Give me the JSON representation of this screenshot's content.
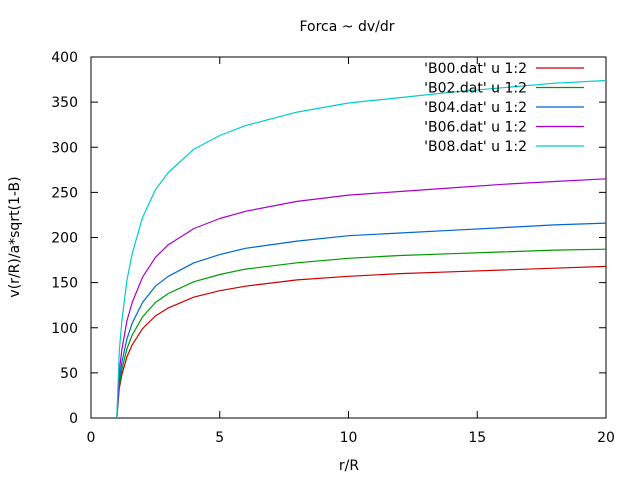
{
  "chart_data": {
    "type": "line",
    "title": "Forca ~ dv/dr",
    "xlabel": "r/R",
    "ylabel": "v(r/R)/a*sqrt(1-B)",
    "xlim": [
      0,
      20
    ],
    "ylim": [
      0,
      400
    ],
    "xticks": [
      0,
      5,
      10,
      15,
      20
    ],
    "yticks": [
      0,
      50,
      100,
      150,
      200,
      250,
      300,
      350,
      400
    ],
    "grid": false,
    "legend_position": "top-right",
    "x": [
      1,
      1.1,
      1.2,
      1.4,
      1.6,
      2,
      2.5,
      3,
      4,
      5,
      6,
      8,
      10,
      12,
      14,
      16,
      18,
      20
    ],
    "series": [
      {
        "name": "'B00.dat' u 1:2",
        "color": "#cc0000",
        "values": [
          0,
          33,
          48,
          68,
          81,
          99,
          113,
          122,
          134,
          141,
          146,
          153,
          157,
          160,
          162,
          164,
          166,
          168
        ]
      },
      {
        "name": "'B02.dat' u 1:2",
        "color": "#009900",
        "values": [
          0,
          37,
          54,
          77,
          92,
          112,
          128,
          138,
          151,
          159,
          165,
          172,
          177,
          180,
          182,
          184,
          186,
          187
        ]
      },
      {
        "name": "'B04.dat' u 1:2",
        "color": "#0066cc",
        "values": [
          0,
          42,
          62,
          88,
          105,
          128,
          146,
          157,
          172,
          181,
          188,
          196,
          202,
          205,
          208,
          211,
          214,
          216
        ]
      },
      {
        "name": "'B06.dat' u 1:2",
        "color": "#aa00cc",
        "values": [
          0,
          52,
          76,
          108,
          128,
          156,
          178,
          192,
          210,
          221,
          229,
          240,
          247,
          251,
          255,
          259,
          262,
          265
        ]
      },
      {
        "name": "'B08.dat' u 1:2",
        "color": "#00cccc",
        "values": [
          0,
          74,
          108,
          153,
          182,
          222,
          253,
          272,
          298,
          313,
          324,
          339,
          349,
          355,
          361,
          366,
          371,
          374
        ]
      }
    ]
  }
}
